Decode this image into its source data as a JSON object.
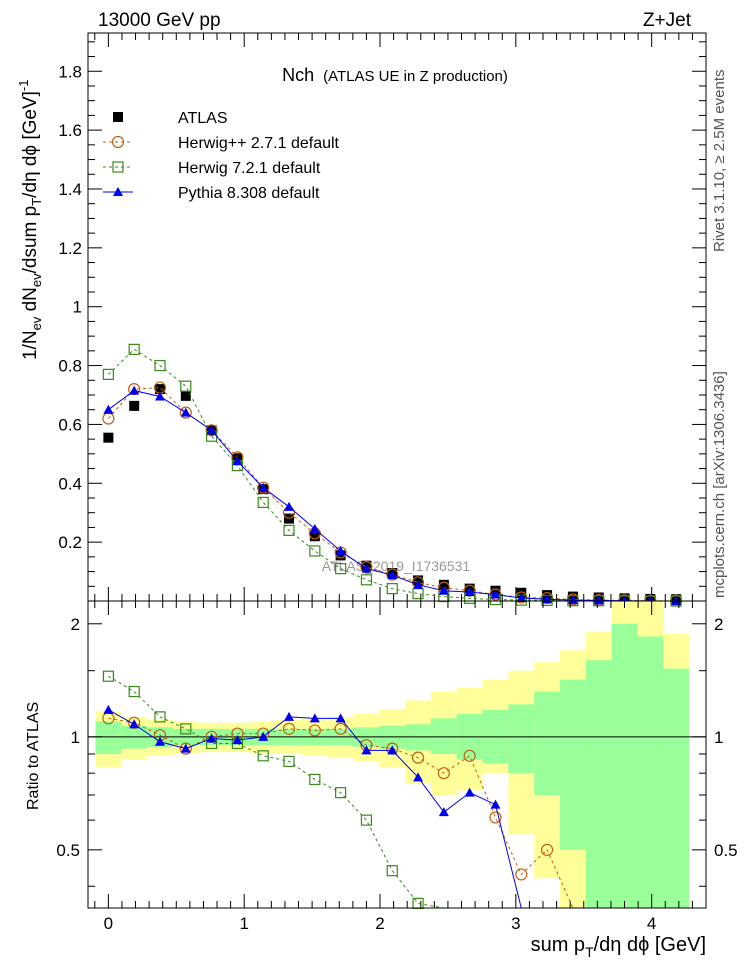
{
  "header": {
    "left": "13000 GeV pp",
    "right": "Z+Jet"
  },
  "side_labels": {
    "rivet": "Rivet 3.1.10, ≥ 2.5M events",
    "mcplots": "mcplots.cern.ch [arXiv:1306.3436]"
  },
  "colors": {
    "atlas": "#000000",
    "herwigpp": "#c06010",
    "herwig7": "#3a8a1a",
    "pythia": "#0000ee",
    "band_inner": "#99ff99",
    "band_outer": "#ffff99"
  },
  "chart_data": [
    {
      "type": "scatter",
      "panel": "main",
      "title": "Nch",
      "subtitle": "(ATLAS UE in Z production)",
      "ylabel_parts": [
        "1/N",
        "ev",
        " dN",
        "ev",
        "/dsum p",
        "T",
        "/dη dϕ  [GeV]",
        "-1"
      ],
      "watermark": "ATLAS_2019_I1736531",
      "xlim": [
        -0.15,
        4.4
      ],
      "ylim": [
        0,
        1.93
      ],
      "yticks": [
        0.2,
        0.4,
        0.6,
        0.8,
        1,
        1.2,
        1.4,
        1.6,
        1.8
      ],
      "ytick_labels": [
        "0.2",
        "0.4",
        "0.6",
        "0.8",
        "1",
        "1.2",
        "1.4",
        "1.6",
        "1.8"
      ],
      "legend": [
        {
          "label": "ATLAS",
          "marker": "square-filled",
          "series": 0
        },
        {
          "label": "Herwig++ 2.7.1 default",
          "marker": "circle-open",
          "series": 1
        },
        {
          "label": "Herwig 7.2.1 default",
          "marker": "square-open",
          "series": 2
        },
        {
          "label": "Pythia 8.308 default",
          "marker": "triangle-filled",
          "series": 3
        }
      ],
      "x": [
        0.0,
        0.19,
        0.38,
        0.57,
        0.76,
        0.95,
        1.14,
        1.33,
        1.52,
        1.71,
        1.9,
        2.09,
        2.28,
        2.47,
        2.66,
        2.85,
        3.04,
        3.23,
        3.42,
        3.61,
        3.8,
        3.99,
        4.18
      ],
      "series": [
        {
          "name": "ATLAS",
          "values": [
            0.555,
            0.663,
            0.72,
            0.697,
            0.58,
            0.485,
            0.38,
            0.28,
            0.22,
            0.155,
            0.12,
            0.095,
            0.07,
            0.055,
            0.042,
            0.035,
            0.028,
            0.02,
            0.015,
            0.012,
            0.009,
            0.007,
            0.006
          ]
        },
        {
          "name": "Herwig++ 2.7.1 default",
          "values": [
            0.62,
            0.72,
            0.725,
            0.64,
            0.58,
            0.488,
            0.385,
            0.3,
            0.23,
            0.165,
            0.115,
            0.09,
            0.063,
            0.045,
            0.035,
            0.022,
            0.012,
            0.01,
            0.005,
            0.003,
            0.002,
            0.001,
            0.001
          ]
        },
        {
          "name": "Herwig 7.2.1 default",
          "values": [
            0.77,
            0.855,
            0.8,
            0.73,
            0.56,
            0.46,
            0.335,
            0.24,
            0.17,
            0.11,
            0.072,
            0.042,
            0.025,
            0.015,
            0.009,
            0.005,
            0.003,
            0.002,
            0.001,
            0.001,
            0.0,
            0.0,
            0.0
          ]
        },
        {
          "name": "Pythia 8.308 default",
          "values": [
            0.65,
            0.715,
            0.695,
            0.64,
            0.58,
            0.475,
            0.385,
            0.32,
            0.245,
            0.17,
            0.11,
            0.088,
            0.055,
            0.035,
            0.03,
            0.022,
            0.01,
            0.006,
            0.003,
            0.002,
            0.001,
            0.0,
            0.0
          ]
        }
      ]
    },
    {
      "type": "scatter",
      "panel": "ratio",
      "ylabel": "Ratio to ATLAS",
      "xlabel_parts": [
        "sum p",
        "T",
        "/dη dϕ [GeV]"
      ],
      "xlim": [
        -0.15,
        4.4
      ],
      "ylim": [
        0.35,
        2.3
      ],
      "xticks": [
        0,
        1,
        2,
        3,
        4
      ],
      "xtick_labels": [
        "0",
        "1",
        "2",
        "3",
        "4"
      ],
      "yticks": [
        0.5,
        1,
        2
      ],
      "ytick_labels": [
        "0.5",
        "1",
        "2"
      ],
      "reference_line": 1,
      "bands": {
        "inner": [
          [
            0.9,
            1.1
          ],
          [
            0.93,
            1.07
          ],
          [
            0.94,
            1.06
          ],
          [
            0.95,
            1.05
          ],
          [
            0.95,
            1.05
          ],
          [
            0.95,
            1.05
          ],
          [
            0.95,
            1.05
          ],
          [
            0.95,
            1.05
          ],
          [
            0.95,
            1.05
          ],
          [
            0.95,
            1.05
          ],
          [
            0.94,
            1.06
          ],
          [
            0.93,
            1.07
          ],
          [
            0.92,
            1.08
          ],
          [
            0.9,
            1.12
          ],
          [
            0.87,
            1.15
          ],
          [
            0.85,
            1.18
          ],
          [
            0.8,
            1.22
          ],
          [
            0.7,
            1.32
          ],
          [
            0.5,
            1.42
          ],
          [
            0.35,
            1.6
          ],
          [
            0.35,
            2.0
          ],
          [
            0.35,
            1.85
          ],
          [
            0.35,
            1.52
          ]
        ],
        "outer": [
          [
            0.83,
            1.17
          ],
          [
            0.87,
            1.13
          ],
          [
            0.89,
            1.11
          ],
          [
            0.9,
            1.1
          ],
          [
            0.91,
            1.09
          ],
          [
            0.91,
            1.09
          ],
          [
            0.9,
            1.1
          ],
          [
            0.9,
            1.11
          ],
          [
            0.89,
            1.12
          ],
          [
            0.88,
            1.13
          ],
          [
            0.86,
            1.15
          ],
          [
            0.83,
            1.18
          ],
          [
            0.75,
            1.25
          ],
          [
            0.7,
            1.32
          ],
          [
            0.72,
            1.35
          ],
          [
            0.8,
            1.42
          ],
          [
            0.55,
            1.5
          ],
          [
            0.42,
            1.58
          ],
          [
            0.35,
            1.7
          ],
          [
            0.35,
            1.9
          ],
          [
            0.35,
            2.3
          ],
          [
            0.35,
            2.3
          ],
          [
            0.35,
            1.88
          ]
        ]
      },
      "series": [
        {
          "name": "Herwig++ 2.7.1 default",
          "values": [
            1.12,
            1.09,
            1.01,
            0.93,
            1.0,
            1.02,
            1.02,
            1.05,
            1.04,
            1.05,
            0.95,
            0.93,
            0.88,
            0.8,
            0.89,
            0.61,
            0.43,
            0.5,
            0.29,
            null,
            null,
            null,
            null
          ]
        },
        {
          "name": "Herwig 7.2.1 default",
          "values": [
            1.45,
            1.32,
            1.13,
            1.05,
            0.96,
            0.96,
            0.89,
            0.86,
            0.77,
            0.71,
            0.6,
            0.44,
            0.36,
            0.27,
            null,
            null,
            null,
            null,
            null,
            null,
            null,
            null,
            null
          ]
        },
        {
          "name": "Pythia 8.308 default",
          "values": [
            1.18,
            1.08,
            0.97,
            0.93,
            0.99,
            0.98,
            1.0,
            1.13,
            1.12,
            1.12,
            0.92,
            0.92,
            0.78,
            0.63,
            0.71,
            0.66,
            0.3,
            0.32,
            null,
            null,
            null,
            null,
            null
          ]
        }
      ]
    }
  ]
}
